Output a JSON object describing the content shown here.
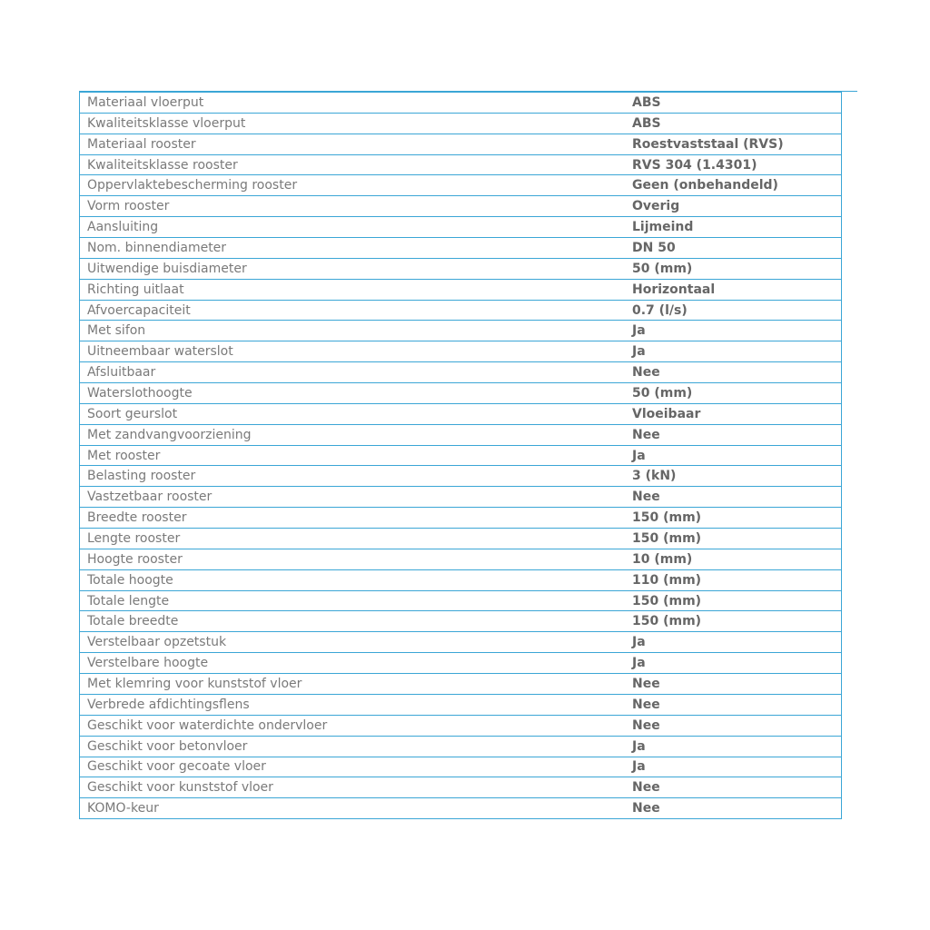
{
  "colors": {
    "border": "#3ba6d6",
    "label_text": "#7a7a7a",
    "value_text": "#666666"
  },
  "specs": [
    {
      "label": "Materiaal vloerput",
      "value": "ABS"
    },
    {
      "label": "Kwaliteitsklasse vloerput",
      "value": "ABS"
    },
    {
      "label": "Materiaal rooster",
      "value": "Roestvaststaal (RVS)"
    },
    {
      "label": "Kwaliteitsklasse rooster",
      "value": "RVS 304 (1.4301)"
    },
    {
      "label": "Oppervlaktebescherming rooster",
      "value": "Geen (onbehandeld)"
    },
    {
      "label": "Vorm rooster",
      "value": "Overig"
    },
    {
      "label": "Aansluiting",
      "value": "Lijmeind"
    },
    {
      "label": "Nom. binnendiameter",
      "value": "DN 50"
    },
    {
      "label": "Uitwendige buisdiameter",
      "value": "50 (mm)"
    },
    {
      "label": "Richting uitlaat",
      "value": "Horizontaal"
    },
    {
      "label": "Afvoercapaciteit",
      "value": "0.7 (l/s)"
    },
    {
      "label": "Met sifon",
      "value": "Ja"
    },
    {
      "label": "Uitneembaar waterslot",
      "value": "Ja"
    },
    {
      "label": "Afsluitbaar",
      "value": "Nee"
    },
    {
      "label": "Waterslothoogte",
      "value": "50 (mm)"
    },
    {
      "label": "Soort geurslot",
      "value": "Vloeibaar"
    },
    {
      "label": "Met zandvangvoorziening",
      "value": "Nee"
    },
    {
      "label": "Met rooster",
      "value": "Ja"
    },
    {
      "label": "Belasting rooster",
      "value": "3 (kN)"
    },
    {
      "label": "Vastzetbaar rooster",
      "value": "Nee"
    },
    {
      "label": "Breedte rooster",
      "value": "150 (mm)"
    },
    {
      "label": "Lengte rooster",
      "value": "150 (mm)"
    },
    {
      "label": "Hoogte rooster",
      "value": "10 (mm)"
    },
    {
      "label": "Totale hoogte",
      "value": "110 (mm)"
    },
    {
      "label": "Totale lengte",
      "value": "150 (mm)"
    },
    {
      "label": "Totale breedte",
      "value": "150 (mm)"
    },
    {
      "label": "Verstelbaar opzetstuk",
      "value": "Ja"
    },
    {
      "label": "Verstelbare hoogte",
      "value": "Ja"
    },
    {
      "label": "Met klemring voor kunststof vloer",
      "value": "Nee"
    },
    {
      "label": "Verbrede afdichtingsflens",
      "value": "Nee"
    },
    {
      "label": "Geschikt voor waterdichte ondervloer",
      "value": "Nee"
    },
    {
      "label": "Geschikt voor betonvloer",
      "value": "Ja"
    },
    {
      "label": "Geschikt voor gecoate vloer",
      "value": "Ja"
    },
    {
      "label": "Geschikt voor kunststof vloer",
      "value": "Nee"
    },
    {
      "label": "KOMO-keur",
      "value": "Nee"
    }
  ]
}
